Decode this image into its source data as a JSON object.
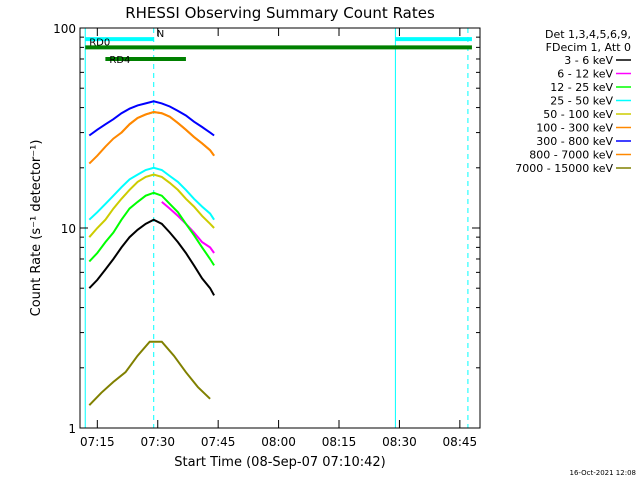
{
  "chart_data": {
    "type": "line",
    "title": "RHESSI Observing Summary Count Rates",
    "xlabel": "Start Time (08-Sep-07 07:10:42)",
    "ylabel": "Count Rate (s⁻¹ detector⁻¹)",
    "y_scale": "log",
    "ylim": [
      1,
      100
    ],
    "xlim": [
      "07:10:42",
      "08:50:00"
    ],
    "x_ticks": [
      "07:15",
      "07:30",
      "07:45",
      "08:00",
      "08:15",
      "08:30",
      "08:45"
    ],
    "y_ticks": [
      "1",
      "10",
      "100"
    ],
    "grid": false,
    "legend_position": "top-right",
    "legend_header": [
      "Det 1,3,4,5,6,9,",
      "FDecim 1, Att 0"
    ],
    "timestamp": "16-Oct-2021 12:08",
    "series": [
      {
        "name": "3 - 6 keV",
        "color": "#000000",
        "x": [
          "07:13",
          "07:15",
          "07:17",
          "07:19",
          "07:21",
          "07:23",
          "07:25",
          "07:27",
          "07:29",
          "07:31",
          "07:33",
          "07:35",
          "07:37",
          "07:39",
          "07:41",
          "07:43",
          "07:44"
        ],
        "values": [
          5.0,
          5.5,
          6.2,
          7.0,
          8.0,
          9.0,
          9.8,
          10.5,
          11.0,
          10.5,
          9.5,
          8.5,
          7.5,
          6.5,
          5.6,
          5.0,
          4.6
        ]
      },
      {
        "name": "6 - 12 keV",
        "color": "#ff00ff",
        "x": [
          "07:31",
          "07:33",
          "07:35",
          "07:37",
          "07:39",
          "07:41",
          "07:43",
          "07:44"
        ],
        "values": [
          13.5,
          12.5,
          11.5,
          10.5,
          9.5,
          8.5,
          8.0,
          7.5
        ]
      },
      {
        "name": "12 - 25 keV",
        "color": "#00ff00",
        "x": [
          "07:13",
          "07:15",
          "07:17",
          "07:19",
          "07:21",
          "07:23",
          "07:25",
          "07:27",
          "07:29",
          "07:31",
          "07:33",
          "07:35",
          "07:37",
          "07:39",
          "07:41",
          "07:43",
          "07:44"
        ],
        "values": [
          6.8,
          7.5,
          8.5,
          9.5,
          11.0,
          12.5,
          13.5,
          14.5,
          15.0,
          14.5,
          13.2,
          12.0,
          10.5,
          9.2,
          8.0,
          7.0,
          6.5
        ]
      },
      {
        "name": "25 - 50 keV",
        "color": "#00ffff",
        "x": [
          "07:13",
          "07:15",
          "07:17",
          "07:19",
          "07:21",
          "07:23",
          "07:25",
          "07:27",
          "07:29",
          "07:31",
          "07:33",
          "07:35",
          "07:37",
          "07:39",
          "07:41",
          "07:43",
          "07:44"
        ],
        "values": [
          11.0,
          12.0,
          13.2,
          14.5,
          16.0,
          17.5,
          18.5,
          19.5,
          20.0,
          19.5,
          18.2,
          17.0,
          15.5,
          14.0,
          12.8,
          11.8,
          11.0
        ]
      },
      {
        "name": "50 - 100 keV",
        "color": "#cccc00",
        "x": [
          "07:13",
          "07:15",
          "07:17",
          "07:19",
          "07:21",
          "07:23",
          "07:25",
          "07:27",
          "07:29",
          "07:31",
          "07:33",
          "07:35",
          "07:37",
          "07:39",
          "07:41",
          "07:43",
          "07:44"
        ],
        "values": [
          9.0,
          10.0,
          11.0,
          12.5,
          14.0,
          15.5,
          17.0,
          18.0,
          18.5,
          18.0,
          16.8,
          15.5,
          14.0,
          12.8,
          11.5,
          10.5,
          10.0
        ]
      },
      {
        "name": "100 - 300 keV",
        "color": "#ff8800",
        "x": [
          "07:21",
          "07:23",
          "07:25",
          "07:27",
          "07:29",
          "07:31",
          "07:33",
          "07:35",
          "07:37",
          "07:39",
          "07:41",
          "07:43",
          "07:44"
        ],
        "values": [
          30.0,
          33.0,
          35.5,
          37.0,
          38.0,
          37.5,
          36.0,
          33.5,
          31.0,
          28.5,
          26.5,
          24.5,
          23.0
        ]
      },
      {
        "name": "300 - 800 keV",
        "color": "#0000ff",
        "x": [
          "07:13",
          "07:15",
          "07:17",
          "07:19",
          "07:21",
          "07:23",
          "07:25",
          "07:27",
          "07:29",
          "07:31",
          "07:33",
          "07:35",
          "07:37",
          "07:39",
          "07:41",
          "07:43",
          "07:44"
        ],
        "values": [
          29.0,
          31.0,
          33.0,
          35.0,
          37.5,
          39.5,
          41.0,
          42.0,
          43.0,
          42.0,
          40.5,
          38.5,
          36.5,
          34.0,
          32.0,
          30.0,
          29.0
        ]
      },
      {
        "name": "800 - 7000 keV",
        "color": "#ff8800",
        "x": [
          "07:13",
          "07:15",
          "07:17",
          "07:19",
          "07:21",
          "07:23",
          "07:25",
          "07:27",
          "07:29",
          "07:31",
          "07:33",
          "07:35",
          "07:37",
          "07:39",
          "07:41",
          "07:43",
          "07:44"
        ],
        "values": [
          21.0,
          23.0,
          25.5,
          28.0,
          30.0,
          33.0,
          35.5,
          37.0,
          38.0,
          37.5,
          36.0,
          33.5,
          31.0,
          28.5,
          26.5,
          24.5,
          23.0
        ]
      },
      {
        "name": "7000 - 15000 keV",
        "color": "#808000",
        "x": [
          "07:13",
          "07:16",
          "07:19",
          "07:22",
          "07:25",
          "07:28",
          "07:31",
          "07:34",
          "07:37",
          "07:40",
          "07:43"
        ],
        "values": [
          1.3,
          1.5,
          1.7,
          1.9,
          2.3,
          2.7,
          2.7,
          2.3,
          1.9,
          1.6,
          1.4
        ]
      }
    ],
    "flag_bars": [
      {
        "label": "N",
        "color": "#00ffff",
        "from": "07:12",
        "to": "07:29",
        "level": 88
      },
      {
        "label": "",
        "color": "#00ffff",
        "from": "08:29",
        "to": "08:48",
        "level": 88
      },
      {
        "label": "RD0",
        "color": "#008000",
        "from": "07:12",
        "to": "08:48",
        "level": 80
      },
      {
        "label": "RD4",
        "color": "#008000",
        "from": "07:17",
        "to": "07:37",
        "level": 70
      }
    ],
    "vertical_markers": [
      {
        "x": "07:12",
        "style": "solid",
        "color": "#00ffff"
      },
      {
        "x": "07:29",
        "style": "dashed",
        "color": "#00ffff"
      },
      {
        "x": "08:29",
        "style": "solid",
        "color": "#00ffff"
      },
      {
        "x": "08:47",
        "style": "dashed",
        "color": "#00ffff"
      }
    ]
  }
}
